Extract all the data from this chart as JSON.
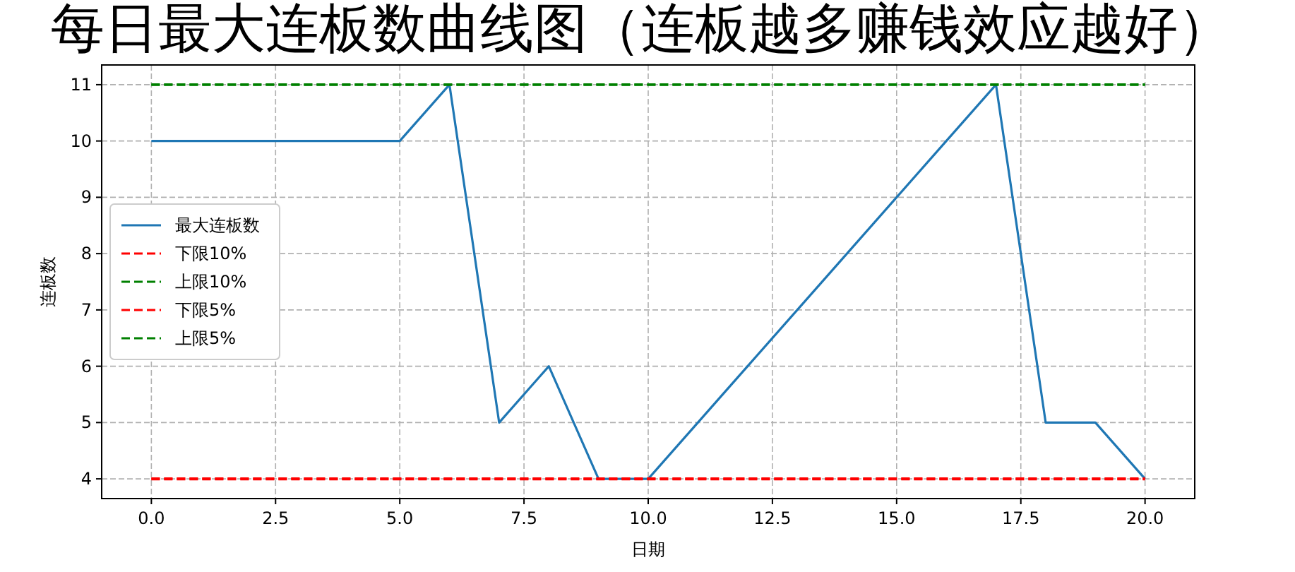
{
  "chart_data": {
    "type": "line",
    "title": "每日最大连板数曲线图（连板越多赚钱效应越好）",
    "xlabel": "日期",
    "ylabel": "连板数",
    "x": [
      0,
      1,
      2,
      3,
      4,
      5,
      6,
      7,
      8,
      9,
      10,
      11,
      12,
      13,
      14,
      15,
      16,
      17,
      18,
      19,
      20
    ],
    "series": [
      {
        "name": "最大连板数",
        "color": "#1f77b4",
        "values": [
          10,
          10,
          10,
          10,
          10,
          10,
          11,
          5,
          6,
          4,
          4,
          5,
          6,
          7,
          8,
          9,
          10,
          11,
          5,
          5,
          4
        ]
      },
      {
        "name": "下限10%",
        "color": "#ff0000",
        "line_style": "dashed",
        "values": [
          4,
          4,
          4,
          4,
          4,
          4,
          4,
          4,
          4,
          4,
          4,
          4,
          4,
          4,
          4,
          4,
          4,
          4,
          4,
          4,
          4
        ]
      },
      {
        "name": "上限10%",
        "color": "#008000",
        "line_style": "dashed",
        "values": [
          11,
          11,
          11,
          11,
          11,
          11,
          11,
          11,
          11,
          11,
          11,
          11,
          11,
          11,
          11,
          11,
          11,
          11,
          11,
          11,
          11
        ]
      },
      {
        "name": "下限5%",
        "color": "#ff0000",
        "line_style": "dashed",
        "values": [
          4,
          4,
          4,
          4,
          4,
          4,
          4,
          4,
          4,
          4,
          4,
          4,
          4,
          4,
          4,
          4,
          4,
          4,
          4,
          4,
          4
        ]
      },
      {
        "name": "上限5%",
        "color": "#008000",
        "line_style": "dashed",
        "values": [
          11,
          11,
          11,
          11,
          11,
          11,
          11,
          11,
          11,
          11,
          11,
          11,
          11,
          11,
          11,
          11,
          11,
          11,
          11,
          11,
          11
        ]
      }
    ],
    "xlim": [
      -1,
      21
    ],
    "ylim": [
      3.65,
      11.35
    ],
    "xticks": [
      {
        "value": 0,
        "label": "0.0"
      },
      {
        "value": 2.5,
        "label": "2.5"
      },
      {
        "value": 5,
        "label": "5.0"
      },
      {
        "value": 7.5,
        "label": "7.5"
      },
      {
        "value": 10,
        "label": "10.0"
      },
      {
        "value": 12.5,
        "label": "12.5"
      },
      {
        "value": 15,
        "label": "15.0"
      },
      {
        "value": 17.5,
        "label": "17.5"
      },
      {
        "value": 20,
        "label": "20.0"
      }
    ],
    "yticks": [
      4,
      5,
      6,
      7,
      8,
      9,
      10,
      11
    ],
    "grid": true,
    "legend": "center left"
  }
}
